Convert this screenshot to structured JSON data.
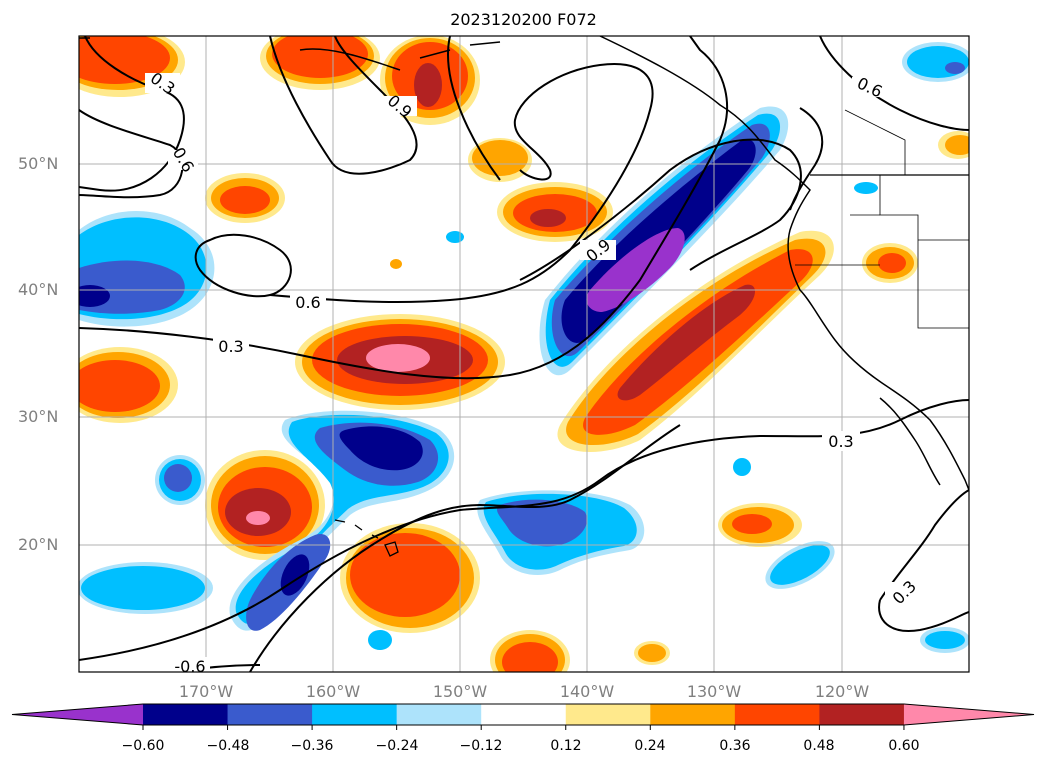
{
  "title": "2023120200 F072",
  "lat_labels": [
    "50°N",
    "40°N",
    "30°N",
    "20°N"
  ],
  "lon_labels": [
    "170°W",
    "160°W",
    "150°W",
    "140°W",
    "130°W",
    "120°W"
  ],
  "contour_labels": [
    "0.3",
    "0.9",
    "0.6",
    "0.9",
    "0.6",
    "0.3",
    "0.6",
    "0.3",
    "0.3",
    "-0.6"
  ],
  "colorbar": {
    "ticks": [
      "−0.60",
      "−0.48",
      "−0.36",
      "−0.24",
      "−0.12",
      "0.12",
      "0.24",
      "0.36",
      "0.48",
      "0.60"
    ],
    "colors": [
      "#9932cc",
      "#00008b",
      "#3a5bcd",
      "#00bfff",
      "#ade3fb",
      "#ffffff",
      "#ffe98c",
      "#ffa500",
      "#ff4500",
      "#b22222",
      "#ff88aa"
    ]
  },
  "palette": {
    "purple": "#9932cc",
    "navy": "#00008b",
    "blue": "#3a5bcd",
    "sky": "#00bfff",
    "lightblue": "#ade3fb",
    "yellow": "#ffe98c",
    "orange": "#ffa500",
    "redorange": "#ff4500",
    "darkred": "#b22222",
    "pink": "#ff88aa"
  }
}
